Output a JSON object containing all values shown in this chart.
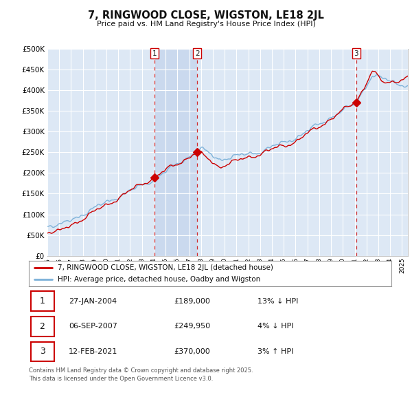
{
  "title": "7, RINGWOOD CLOSE, WIGSTON, LE18 2JL",
  "subtitle": "Price paid vs. HM Land Registry's House Price Index (HPI)",
  "ylim": [
    0,
    500000
  ],
  "yticks": [
    0,
    50000,
    100000,
    150000,
    200000,
    250000,
    300000,
    350000,
    400000,
    450000,
    500000
  ],
  "background_color": "#ffffff",
  "plot_bg_color": "#dde8f5",
  "grid_color": "#ffffff",
  "legend_label_red": "7, RINGWOOD CLOSE, WIGSTON, LE18 2JL (detached house)",
  "legend_label_blue": "HPI: Average price, detached house, Oadby and Wigston",
  "red_color": "#cc0000",
  "blue_color": "#7ab0d8",
  "highlight_color": "#c8d8ee",
  "transaction_markers": [
    {
      "num": 1,
      "year": 2004.07,
      "price": 189000
    },
    {
      "num": 2,
      "year": 2007.68,
      "price": 249950
    },
    {
      "num": 3,
      "year": 2021.12,
      "price": 370000
    }
  ],
  "footer_text": "Contains HM Land Registry data © Crown copyright and database right 2025.\nThis data is licensed under the Open Government Licence v3.0.",
  "copyright_color": "#555555",
  "table_rows": [
    {
      "num": 1,
      "date": "27-JAN-2004",
      "price": "£189,000",
      "hpi": "13% ↓ HPI"
    },
    {
      "num": 2,
      "date": "06-SEP-2007",
      "price": "£249,950",
      "hpi": "4% ↓ HPI"
    },
    {
      "num": 3,
      "date": "12-FEB-2021",
      "price": "£370,000",
      "hpi": "3% ↑ HPI"
    }
  ],
  "xmin": 1995.0,
  "xmax": 2025.5
}
